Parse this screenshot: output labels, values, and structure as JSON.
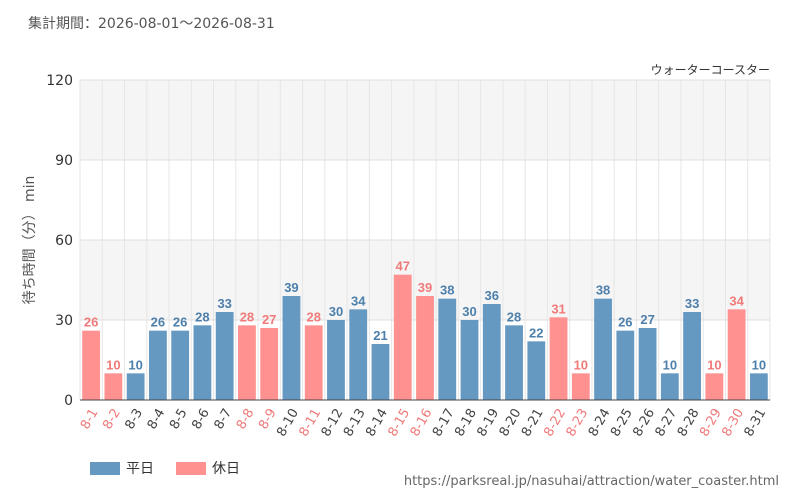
{
  "header": {
    "period": "集計期間：2026-08-01～2026-08-31"
  },
  "colors": {
    "weekday": "#6699c2",
    "holiday": "#ff9191",
    "weekday_label": "#4d7fab",
    "holiday_label": "#f07a7a"
  },
  "legend": {
    "weekday": "平日",
    "holiday": "休日"
  },
  "source": "https://parksreal.jp/nasuhai/attraction/water_coaster.html",
  "chart_data": {
    "type": "bar",
    "title": "ウォーターコースター",
    "ylabel": "待ち時間（分） min",
    "ylim": [
      0,
      120
    ],
    "yticks": [
      "0",
      "30",
      "60",
      "90",
      "120"
    ],
    "grid": true,
    "legend_position": "bottom-left",
    "categories": [
      "8-1",
      "8-2",
      "8-3",
      "8-4",
      "8-5",
      "8-6",
      "8-7",
      "8-8",
      "8-9",
      "8-10",
      "8-11",
      "8-12",
      "8-13",
      "8-14",
      "8-15",
      "8-16",
      "8-17",
      "8-18",
      "8-19",
      "8-20",
      "8-21",
      "8-22",
      "8-23",
      "8-24",
      "8-25",
      "8-26",
      "8-27",
      "8-28",
      "8-29",
      "8-30",
      "8-31"
    ],
    "values": [
      26,
      10,
      10,
      26,
      26,
      28,
      33,
      28,
      27,
      39,
      28,
      30,
      34,
      21,
      47,
      39,
      38,
      30,
      36,
      28,
      22,
      31,
      10,
      38,
      26,
      27,
      10,
      33,
      10,
      34,
      10
    ],
    "day_type": [
      "holiday",
      "holiday",
      "weekday",
      "weekday",
      "weekday",
      "weekday",
      "weekday",
      "holiday",
      "holiday",
      "weekday",
      "holiday",
      "weekday",
      "weekday",
      "weekday",
      "holiday",
      "holiday",
      "weekday",
      "weekday",
      "weekday",
      "weekday",
      "weekday",
      "holiday",
      "holiday",
      "weekday",
      "weekday",
      "weekday",
      "weekday",
      "weekday",
      "holiday",
      "holiday",
      "weekday"
    ]
  }
}
